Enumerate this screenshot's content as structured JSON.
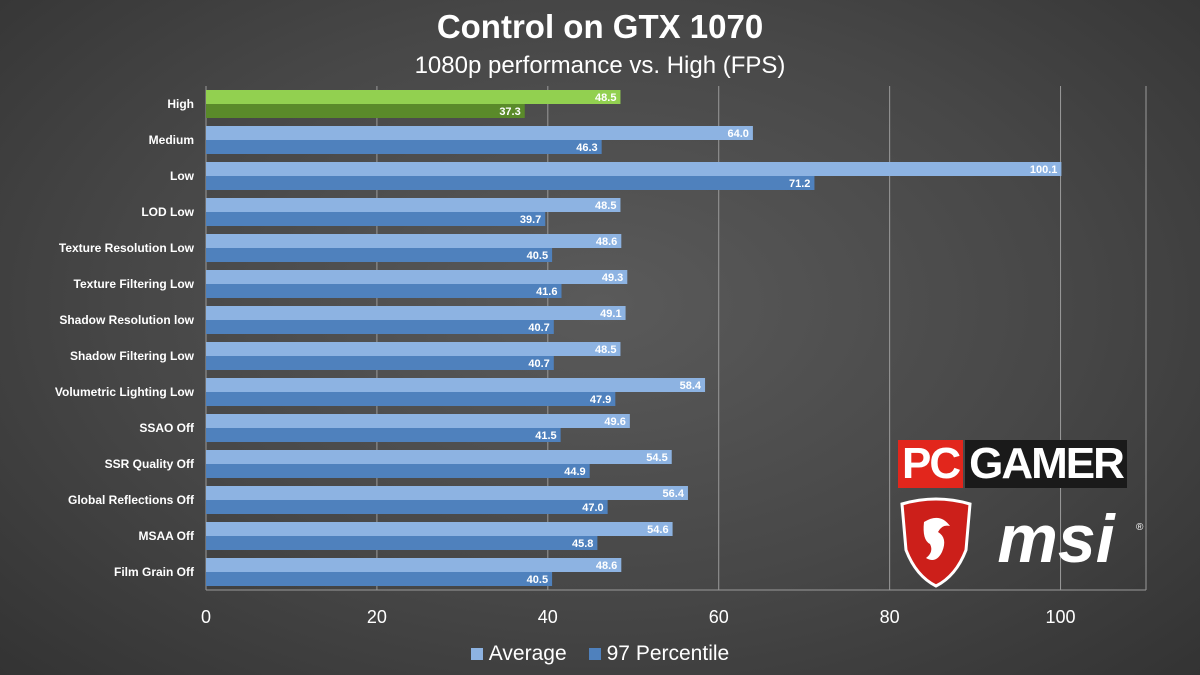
{
  "colors": {
    "average": "#8db3e2",
    "percentile": "#4f81bd",
    "highlight_average": "#92d050",
    "highlight_percentile": "#5a8a2a",
    "grid": "#9a9a9a",
    "pc_red": "#e2261c"
  },
  "logos": {
    "pc": "PC",
    "gamer": "GAMER",
    "msi": "msi"
  },
  "chart_data": {
    "type": "bar",
    "orientation": "horizontal",
    "title": "Control on GTX 1070",
    "subtitle": "1080p performance vs. High (FPS)",
    "categories": [
      "High",
      "Medium",
      "Low",
      "LOD Low",
      "Texture Resolution Low",
      "Texture Filtering Low",
      "Shadow Resolution low",
      "Shadow Filtering Low",
      "Volumetric Lighting Low",
      "SSAO Off",
      "SSR Quality Off",
      "Global Reflections Off",
      "MSAA Off",
      "Film Grain Off"
    ],
    "highlighted_category": "High",
    "series": [
      {
        "name": "Average",
        "values": [
          48.5,
          64.0,
          100.1,
          48.5,
          48.6,
          49.3,
          49.1,
          48.5,
          58.4,
          49.6,
          54.5,
          56.4,
          54.6,
          48.6
        ]
      },
      {
        "name": "97 Percentile",
        "values": [
          37.3,
          46.3,
          71.2,
          39.7,
          40.5,
          41.6,
          40.7,
          40.7,
          47.9,
          41.5,
          44.9,
          47.0,
          45.8,
          40.5
        ]
      }
    ],
    "xlim": [
      0,
      110
    ],
    "xticks": [
      0,
      20,
      40,
      60,
      80,
      100
    ],
    "grid": true,
    "legend": "bottom"
  }
}
